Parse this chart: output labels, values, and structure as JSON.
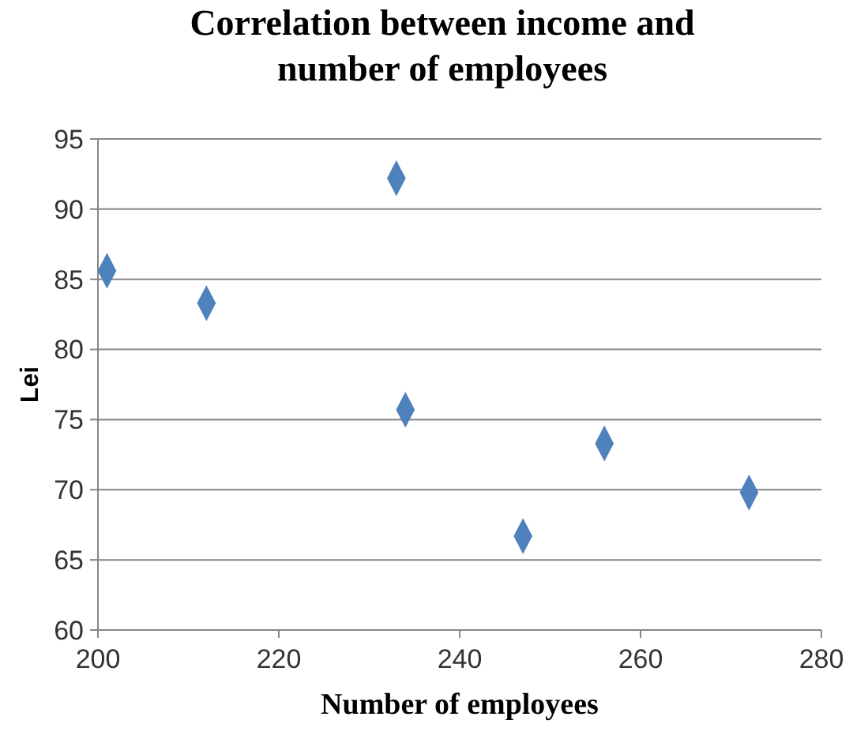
{
  "chart_data": {
    "type": "scatter",
    "title": "Correlation between income and number of employees",
    "xlabel": "Number of employees",
    "ylabel": "Lei",
    "series": [
      {
        "color": "#4f81bd",
        "x": [
          201,
          212,
          233,
          234,
          247,
          256,
          272
        ],
        "values": [
          85.6,
          83.3,
          92.2,
          75.7,
          66.7,
          73.3,
          69.8
        ]
      }
    ],
    "xlim": [
      200,
      280
    ],
    "xticks": [
      200,
      220,
      240,
      260,
      280
    ],
    "ylim": [
      60,
      95
    ],
    "yticks": [
      60,
      65,
      70,
      75,
      80,
      85,
      90,
      95
    ],
    "grid": "y",
    "marker": "diamond"
  }
}
